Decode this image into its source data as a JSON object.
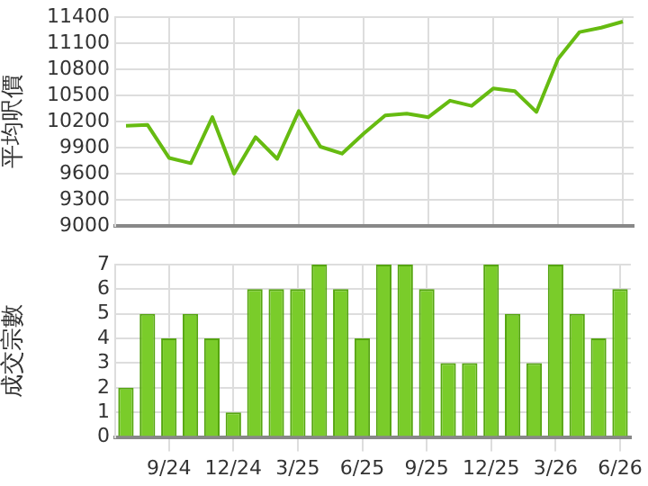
{
  "chart_data": [
    {
      "type": "line",
      "ylabel": "平均呎價",
      "categories": [
        null,
        null,
        null,
        null,
        null,
        null,
        null,
        null,
        null,
        null,
        null,
        null,
        null,
        null,
        null,
        null,
        null,
        null,
        null,
        null,
        null,
        null,
        null,
        null
      ],
      "values": [
        10150,
        10160,
        9780,
        9720,
        10250,
        9600,
        10020,
        9770,
        10320,
        9910,
        9830,
        10060,
        10270,
        10290,
        10250,
        10440,
        10380,
        10580,
        10550,
        10310,
        10920,
        11230,
        11280,
        11350
      ],
      "color": "#66bb11",
      "ylim": [
        9000,
        11400
      ],
      "yticks": [
        9000,
        9300,
        9600,
        9900,
        10200,
        10500,
        10800,
        11100,
        11400
      ],
      "grid": true,
      "tick_labels": "y",
      "marker": "none"
    },
    {
      "type": "bar",
      "ylabel": "成交宗數",
      "categories": [
        null,
        null,
        "9/24",
        null,
        null,
        "12/24",
        null,
        null,
        "3/25",
        null,
        null,
        "6/25",
        null,
        null,
        "9/25",
        null,
        null,
        "12/25",
        null,
        null,
        "3/26",
        null,
        null,
        "6/26"
      ],
      "values": [
        2,
        5,
        4,
        5,
        4,
        1,
        6,
        6,
        6,
        7,
        6,
        4,
        7,
        7,
        6,
        3,
        3,
        7,
        5,
        3,
        7,
        5,
        4,
        6
      ],
      "color": "#7acc2a",
      "ylim": [
        0,
        7
      ],
      "yticks": [
        0,
        1,
        2,
        3,
        4,
        5,
        6,
        7
      ],
      "grid": true
    }
  ]
}
